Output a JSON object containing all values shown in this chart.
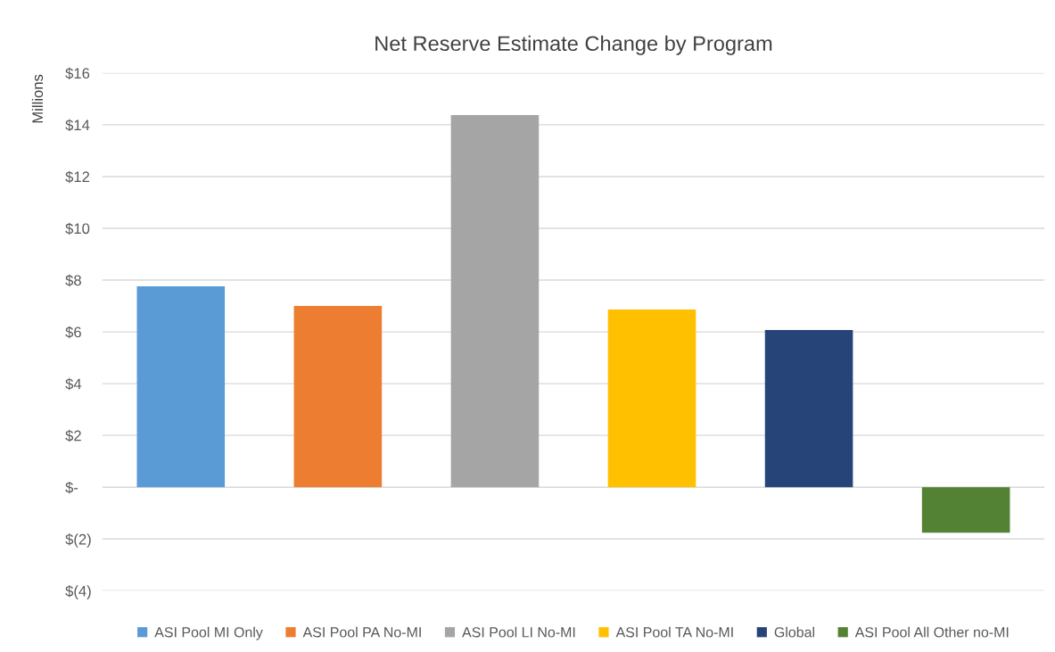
{
  "chart_data": {
    "type": "bar",
    "title": "Net Reserve Estimate Change by Program",
    "ylabel": "Millions",
    "categories": [
      null
    ],
    "series": [
      {
        "name": "ASI Pool MI Only",
        "color": "#5b9bd5",
        "values": [
          7.76
        ]
      },
      {
        "name": "ASI Pool PA No-MI",
        "color": "#ed7d31",
        "values": [
          7.0
        ]
      },
      {
        "name": "ASI Pool LI No-MI",
        "color": "#a5a5a5",
        "values": [
          14.38
        ]
      },
      {
        "name": "ASI Pool TA No-MI",
        "color": "#ffc000",
        "values": [
          6.86
        ]
      },
      {
        "name": "Global",
        "color": "#264478",
        "values": [
          6.07
        ]
      },
      {
        "name": "ASI Pool All Other no-MI",
        "color": "#548235",
        "values": [
          -1.76
        ]
      }
    ],
    "ylim": [
      -4,
      16
    ],
    "yticks": [
      {
        "value": -4,
        "label": "$(4)"
      },
      {
        "value": -2,
        "label": "$(2)"
      },
      {
        "value": 0,
        "label": "$-"
      },
      {
        "value": 2,
        "label": "$2"
      },
      {
        "value": 4,
        "label": "$4"
      },
      {
        "value": 6,
        "label": "$6"
      },
      {
        "value": 8,
        "label": "$8"
      },
      {
        "value": 10,
        "label": "$10"
      },
      {
        "value": 12,
        "label": "$12"
      },
      {
        "value": 14,
        "label": "$14"
      },
      {
        "value": 16,
        "label": "$16"
      }
    ],
    "grid": "y",
    "legend": "bottom"
  }
}
